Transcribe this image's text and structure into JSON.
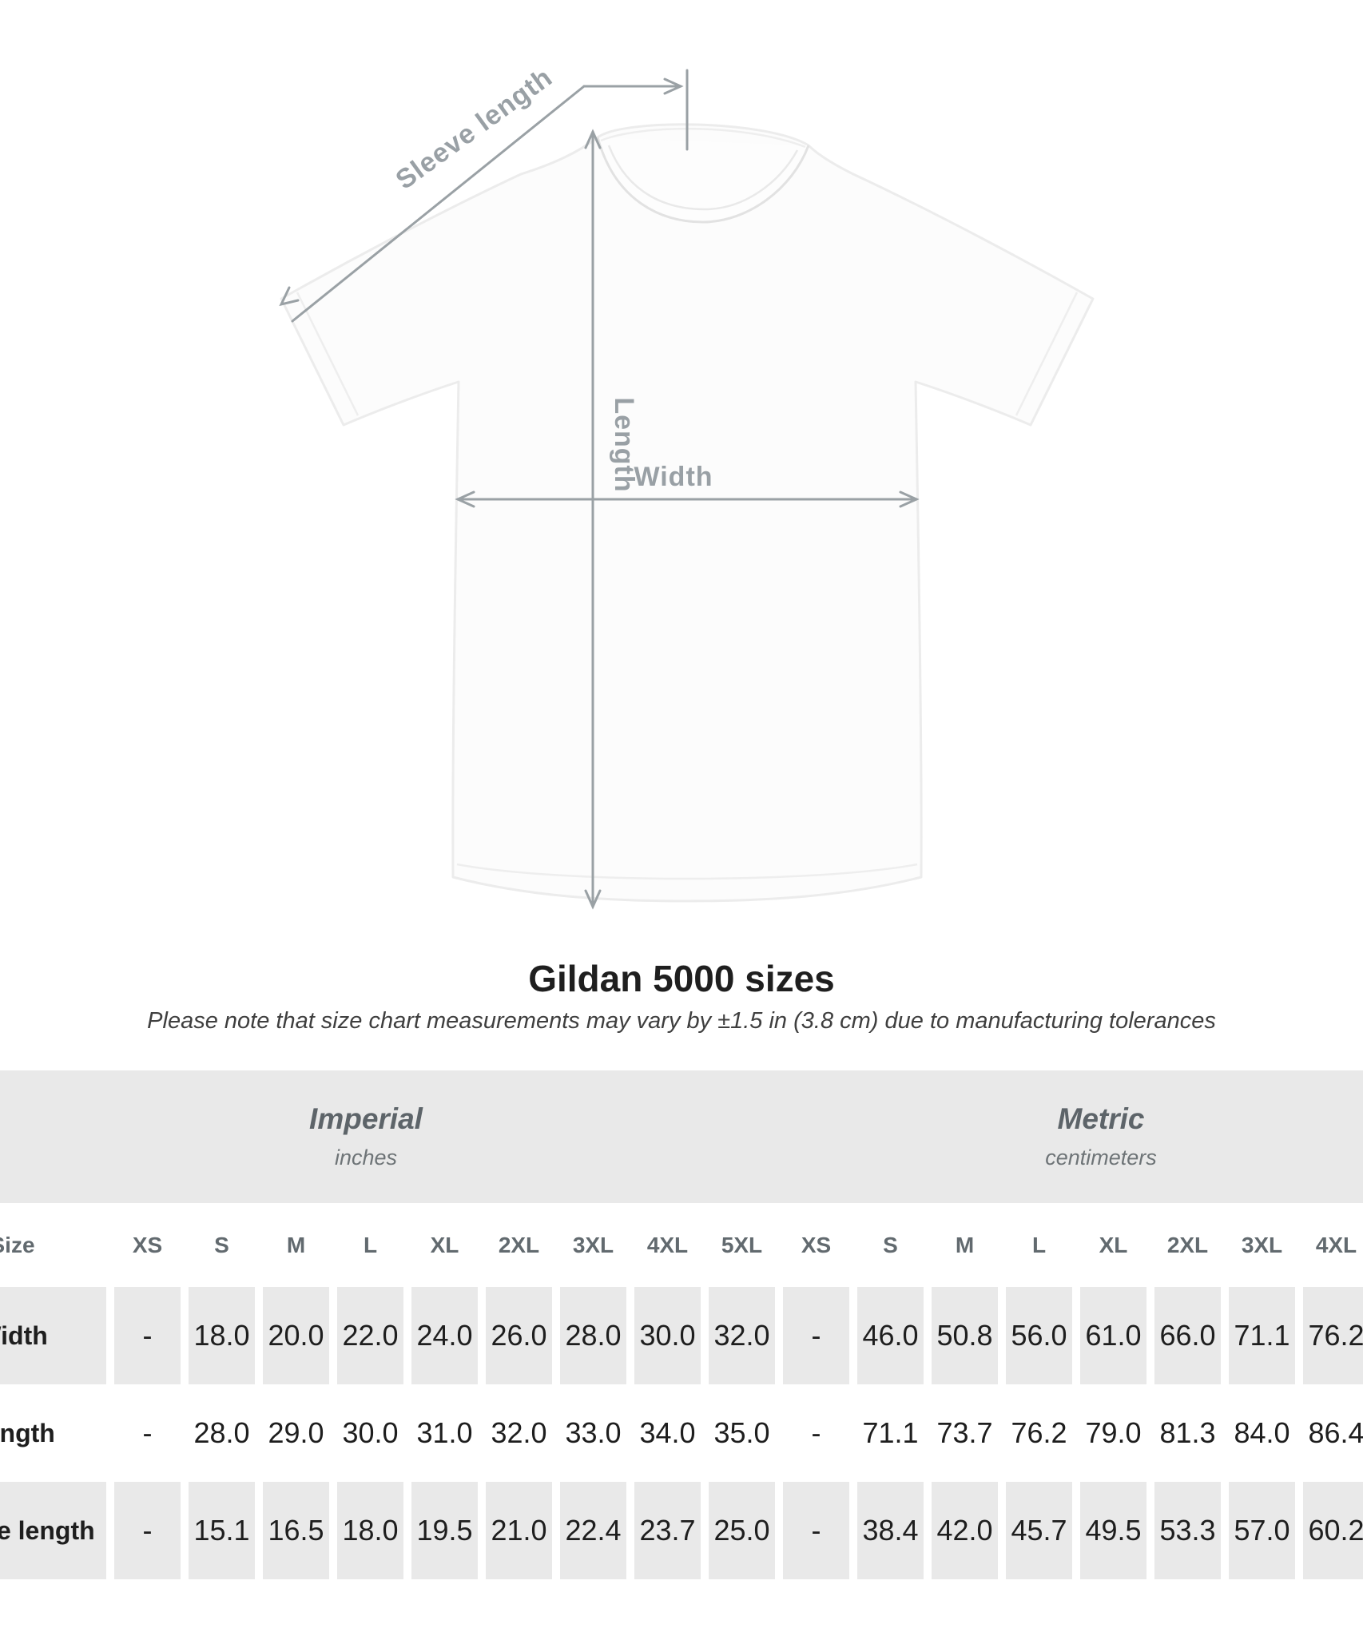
{
  "shirt": {
    "labels": {
      "sleeve": "Sleeve length",
      "length": "Length",
      "width": "Width"
    },
    "arrow_color": "#9aa1a5",
    "label_color": "#99a0a5"
  },
  "heading": {
    "title": "Gildan 5000 sizes",
    "subtitle": "Please note that size chart measurements may vary by ±1.5 in (3.8 cm) due to manufacturing tolerances"
  },
  "chart_data": {
    "type": "table",
    "title": "Gildan 5000 sizes",
    "size_row_label": "Size",
    "groups": [
      {
        "name": "Imperial",
        "unit": "inches",
        "columns": [
          "XS",
          "S",
          "M",
          "L",
          "XL",
          "2XL",
          "3XL",
          "4XL",
          "5XL"
        ]
      },
      {
        "name": "Metric",
        "unit": "centimeters",
        "columns": [
          "XS",
          "S",
          "M",
          "L",
          "XL",
          "2XL",
          "3XL",
          "4XL"
        ]
      }
    ],
    "rows": [
      {
        "label": "Width",
        "imperial": [
          "-",
          "18.0",
          "20.0",
          "22.0",
          "24.0",
          "26.0",
          "28.0",
          "30.0",
          "32.0"
        ],
        "metric": [
          "-",
          "46.0",
          "50.8",
          "56.0",
          "61.0",
          "66.0",
          "71.1",
          "76.2"
        ]
      },
      {
        "label": "Length",
        "imperial": [
          "-",
          "28.0",
          "29.0",
          "30.0",
          "31.0",
          "32.0",
          "33.0",
          "34.0",
          "35.0"
        ],
        "metric": [
          "-",
          "71.1",
          "73.7",
          "76.2",
          "79.0",
          "81.3",
          "84.0",
          "86.4"
        ]
      },
      {
        "label": "Sleeve length",
        "imperial": [
          "-",
          "15.1",
          "16.5",
          "18.0",
          "19.5",
          "21.0",
          "22.4",
          "23.7",
          "25.0"
        ],
        "metric": [
          "-",
          "38.4",
          "42.0",
          "45.7",
          "49.5",
          "53.3",
          "57.0",
          "60.2"
        ]
      }
    ],
    "colors": {
      "table_gray": "#e9e9e9"
    }
  }
}
